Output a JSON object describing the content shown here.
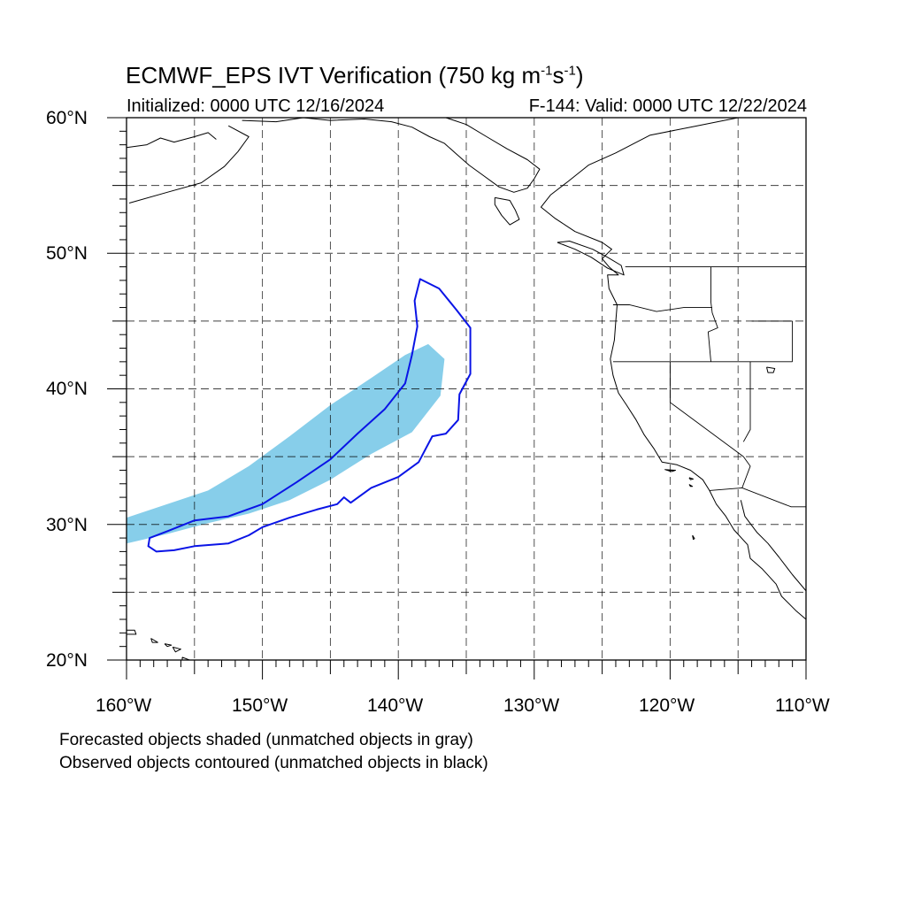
{
  "title": {
    "prefix": "ECMWF_EPS IVT Verification (750 kg m",
    "exp1": "-1",
    "mid": "s",
    "exp2": "-1",
    "suffix": ")"
  },
  "initialized": "Initialized: 0000 UTC 12/16/2024",
  "valid": "F-144: Valid: 0000 UTC 12/22/2024",
  "lat_labels": [
    "60°N",
    "50°N",
    "40°N",
    "30°N",
    "20°N"
  ],
  "lon_labels": [
    "160°W",
    "150°W",
    "140°W",
    "130°W",
    "120°W",
    "110°W"
  ],
  "notes": [
    "Forecasted objects shaded (unmatched objects in gray)",
    "Observed objects contoured (unmatched objects in black)"
  ],
  "map_extent": {
    "lon": [
      -160,
      -110
    ],
    "lat": [
      20,
      60
    ]
  },
  "colors": {
    "forecast_fill": "#87ceea",
    "observed_line": "#0a14e6",
    "coast": "#000000",
    "grid": "#000000"
  },
  "forecast_object_outline": [
    [
      -160,
      30.5
    ],
    [
      -157,
      31.5
    ],
    [
      -154,
      32.5
    ],
    [
      -151,
      34.3
    ],
    [
      -148,
      36.5
    ],
    [
      -145,
      38.8
    ],
    [
      -142,
      40.8
    ],
    [
      -139.5,
      42.5
    ],
    [
      -137.8,
      43.3
    ],
    [
      -136.6,
      42.2
    ],
    [
      -136.9,
      39.5
    ],
    [
      -139,
      36.8
    ],
    [
      -142,
      35.2
    ],
    [
      -145,
      33.3
    ],
    [
      -148,
      31.8
    ],
    [
      -151,
      30.8
    ],
    [
      -154,
      30.1
    ],
    [
      -157,
      29.3
    ],
    [
      -160,
      28.6
    ]
  ],
  "observed_object_outline": [
    [
      -158.3,
      29.0
    ],
    [
      -157,
      29.5
    ],
    [
      -155,
      30.3
    ],
    [
      -152.5,
      30.6
    ],
    [
      -150,
      31.5
    ],
    [
      -147.5,
      33.1
    ],
    [
      -145,
      34.8
    ],
    [
      -143,
      36.7
    ],
    [
      -141,
      38.5
    ],
    [
      -139.5,
      40.4
    ],
    [
      -139,
      42.5
    ],
    [
      -138.6,
      44.6
    ],
    [
      -138.8,
      46.5
    ],
    [
      -138.4,
      48.1
    ],
    [
      -137,
      47.4
    ],
    [
      -135.7,
      45.8
    ],
    [
      -134.7,
      44.5
    ],
    [
      -134.7,
      41.1
    ],
    [
      -135.5,
      39.6
    ],
    [
      -135.6,
      37.7
    ],
    [
      -136.5,
      36.7
    ],
    [
      -137.5,
      36.5
    ],
    [
      -138.5,
      34.6
    ],
    [
      -140,
      33.5
    ],
    [
      -142,
      32.7
    ],
    [
      -143.5,
      31.6
    ],
    [
      -144,
      32.0
    ],
    [
      -144.5,
      31.5
    ],
    [
      -146,
      31.1
    ],
    [
      -148,
      30.5
    ],
    [
      -150,
      29.8
    ],
    [
      -151,
      29.2
    ],
    [
      -152.5,
      28.6
    ],
    [
      -155,
      28.4
    ],
    [
      -156.5,
      28.1
    ],
    [
      -157.8,
      28.0
    ],
    [
      -158.4,
      28.4
    ]
  ],
  "coastline": [
    [
      -115,
      60
    ],
    [
      -118.5,
      59.3
    ],
    [
      -121.5,
      58.7
    ],
    [
      -124,
      57.4
    ],
    [
      -126,
      56.5
    ],
    [
      -127.5,
      55.3
    ],
    [
      -128.8,
      54.3
    ],
    [
      -129.5,
      53.4
    ],
    [
      -128.5,
      52.6
    ],
    [
      -127,
      51.6
    ],
    [
      -125,
      50.8
    ],
    [
      -124.3,
      50.3
    ],
    [
      -125,
      49.6
    ],
    [
      -124.5,
      49.0
    ],
    [
      -123.8,
      48.4
    ],
    [
      -124.6,
      48.4
    ],
    [
      -124.5,
      47.4
    ],
    [
      -123.9,
      46.2
    ],
    [
      -124,
      45.0
    ],
    [
      -124.1,
      43.6
    ],
    [
      -124.4,
      42.2
    ],
    [
      -124.2,
      41.0
    ],
    [
      -123.8,
      39.7
    ],
    [
      -123.2,
      38.8
    ],
    [
      -122.5,
      37.7
    ],
    [
      -121.9,
      36.6
    ],
    [
      -121.2,
      35.6
    ],
    [
      -120.6,
      34.6
    ],
    [
      -119.5,
      34.4
    ],
    [
      -118.5,
      34.0
    ],
    [
      -117.6,
      33.3
    ],
    [
      -117.1,
      32.5
    ],
    [
      -116.6,
      31.5
    ],
    [
      -115.9,
      30.6
    ],
    [
      -115.3,
      29.6
    ],
    [
      -114.3,
      28.5
    ],
    [
      -114.1,
      27.5
    ],
    [
      -113.2,
      26.7
    ],
    [
      -112.2,
      25.6
    ],
    [
      -111.8,
      24.7
    ],
    [
      -110.7,
      23.6
    ],
    [
      -110,
      23.0
    ]
  ],
  "coastline_mainland_gulf": [
    [
      -114.8,
      31.8
    ],
    [
      -114.5,
      30.6
    ],
    [
      -113.6,
      29.4
    ],
    [
      -112.8,
      28.6
    ],
    [
      -112,
      27.6
    ],
    [
      -111,
      26.3
    ],
    [
      -110,
      25.1
    ]
  ],
  "coastline_alaska_west": [
    [
      -159.8,
      53.7
    ],
    [
      -157,
      54.5
    ],
    [
      -154.5,
      55.2
    ],
    [
      -152.8,
      56.4
    ],
    [
      -151.8,
      57.5
    ],
    [
      -151,
      58.6
    ],
    [
      -152.5,
      59.4
    ]
  ],
  "coastline_alaska_islands": [
    [
      -160,
      57.8
    ],
    [
      -158.5,
      58.0
    ],
    [
      -157.5,
      58.5
    ],
    [
      -156.5,
      58.2
    ],
    [
      -155,
      58.6
    ],
    [
      -154,
      58.9
    ],
    [
      -153.4,
      58.4
    ]
  ],
  "coastline_alaska_east": [
    [
      -151.5,
      59.8
    ],
    [
      -149,
      59.7
    ],
    [
      -147,
      60
    ],
    [
      -145,
      59.8
    ],
    [
      -142.5,
      59.9
    ],
    [
      -140.5,
      59.7
    ],
    [
      -139,
      59.3
    ],
    [
      -137.7,
      58.6
    ],
    [
      -136.6,
      58.1
    ],
    [
      -135.7,
      57.3
    ],
    [
      -134.8,
      56.5
    ],
    [
      -133.7,
      55.7
    ],
    [
      -132.6,
      54.9
    ],
    [
      -131.5,
      54.5
    ],
    [
      -130.5,
      54.8
    ],
    [
      -130,
      55.5
    ],
    [
      -129.6,
      56.2
    ],
    [
      -130.5,
      56.9
    ],
    [
      -132,
      57.7
    ],
    [
      -133.5,
      58.6
    ],
    [
      -135,
      59.5
    ],
    [
      -136.5,
      60
    ]
  ],
  "haida_gwaii": [
    [
      -132.9,
      54.1
    ],
    [
      -131.8,
      53.9
    ],
    [
      -131.4,
      53.2
    ],
    [
      -131.1,
      52.5
    ],
    [
      -131.8,
      52.1
    ],
    [
      -132.4,
      52.8
    ],
    [
      -132.9,
      53.6
    ],
    [
      -132.9,
      54.1
    ]
  ],
  "vancouver_island": [
    [
      -128.3,
      50.8
    ],
    [
      -127,
      50.3
    ],
    [
      -125.8,
      49.7
    ],
    [
      -124.6,
      48.9
    ],
    [
      -123.4,
      48.4
    ],
    [
      -123.6,
      49.1
    ],
    [
      -124.6,
      49.7
    ],
    [
      -125.7,
      50.3
    ],
    [
      -127.4,
      50.9
    ],
    [
      -128.3,
      50.8
    ]
  ],
  "hawaii_islands": [
    [
      [
        -160.2,
        22.2
      ],
      [
        -159.4,
        22.2
      ],
      [
        -159.3,
        21.9
      ],
      [
        -160,
        21.9
      ],
      [
        -160.2,
        22.2
      ]
    ],
    [
      [
        -158.2,
        21.6
      ],
      [
        -157.7,
        21.3
      ],
      [
        -158.1,
        21.3
      ],
      [
        -158.2,
        21.6
      ]
    ],
    [
      [
        -157.2,
        21.2
      ],
      [
        -156.7,
        21.1
      ],
      [
        -157.0,
        21.0
      ],
      [
        -157.2,
        21.2
      ]
    ],
    [
      [
        -156.6,
        20.95
      ],
      [
        -156.0,
        20.8
      ],
      [
        -156.4,
        20.6
      ],
      [
        -156.6,
        20.95
      ]
    ],
    [
      [
        -155.9,
        20.2
      ],
      [
        -155.1,
        19.9
      ],
      [
        -154.9,
        19.5
      ],
      [
        -155.6,
        19.1
      ],
      [
        -155.9,
        19.5
      ],
      [
        -155.9,
        20.2
      ]
    ]
  ],
  "channel_islands": [
    [
      [
        -120.4,
        34.05
      ],
      [
        -119.6,
        34.0
      ],
      [
        -119.9,
        33.9
      ],
      [
        -120.4,
        34.05
      ]
    ],
    [
      [
        -118.6,
        33.45
      ],
      [
        -118.3,
        33.35
      ],
      [
        -118.5,
        33.3
      ],
      [
        -118.6,
        33.45
      ]
    ],
    [
      [
        -118.6,
        32.95
      ],
      [
        -118.35,
        32.8
      ],
      [
        -118.5,
        32.8
      ],
      [
        -118.6,
        32.95
      ]
    ]
  ],
  "guadalupe_island": [
    [
      -118.35,
      29.2
    ],
    [
      -118.2,
      28.95
    ],
    [
      -118.3,
      28.9
    ],
    [
      -118.35,
      29.2
    ]
  ],
  "borders": [
    [
      [
        -123.3,
        49.0
      ],
      [
        -95,
        49.0
      ]
    ],
    [
      [
        -124.2,
        46.2
      ],
      [
        -123,
        46.2
      ],
      [
        -121,
        45.7
      ],
      [
        -119,
        46.0
      ],
      [
        -116.9,
        46.0
      ]
    ],
    [
      [
        -124.2,
        42.0
      ],
      [
        -111,
        42.0
      ]
    ],
    [
      [
        -120,
        42.0
      ],
      [
        -120,
        39.0
      ],
      [
        -114.6,
        35.0
      ]
    ],
    [
      [
        -117.0,
        49.0
      ],
      [
        -117.0,
        46.4
      ],
      [
        -116.9,
        45.6
      ],
      [
        -116.5,
        44.5
      ],
      [
        -117.2,
        44.2
      ],
      [
        -117.0,
        42.0
      ]
    ],
    [
      [
        -117.1,
        32.5
      ],
      [
        -114.7,
        32.7
      ],
      [
        -111.1,
        31.3
      ],
      [
        -108.2,
        31.3
      ]
    ],
    [
      [
        -114.6,
        35.0
      ],
      [
        -114.1,
        34.3
      ],
      [
        -114.7,
        32.7
      ]
    ],
    [
      [
        -114.1,
        42.0
      ],
      [
        -114.1,
        37.0
      ],
      [
        -114.6,
        36.1
      ]
    ],
    [
      [
        -111.0,
        45.0
      ],
      [
        -111.0,
        42.0
      ]
    ],
    [
      [
        -111.0,
        45.0
      ],
      [
        -114,
        45.0
      ]
    ]
  ],
  "great_salt_lake": [
    [
      -112.9,
      41.6
    ],
    [
      -112.3,
      41.5
    ],
    [
      -112.4,
      41.2
    ],
    [
      -112.8,
      41.2
    ],
    [
      -112.9,
      41.6
    ]
  ]
}
